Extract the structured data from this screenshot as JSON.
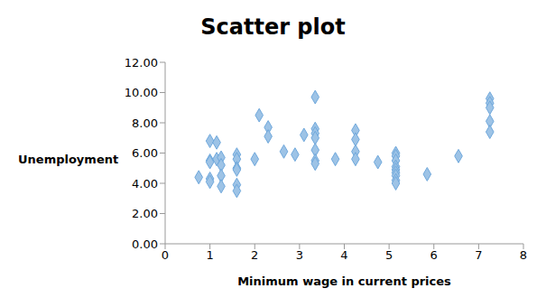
{
  "chart_data": {
    "type": "scatter",
    "title": "Scatter plot",
    "x_label": "Minimum wage in current prices",
    "y_label": "Unemployment",
    "x": [
      0.75,
      1,
      1,
      1,
      1,
      1,
      1.15,
      1.15,
      1.25,
      1.25,
      1.25,
      1.25,
      1.6,
      1.6,
      1.6,
      1.6,
      1.6,
      1.6,
      2.0,
      2.1,
      2.3,
      2.3,
      2.65,
      2.9,
      3.1,
      3.35,
      3.35,
      3.35,
      3.35,
      3.35,
      3.35,
      3.35,
      3.8,
      4.25,
      4.25,
      4.25,
      4.25,
      4.75,
      5.15,
      5.15,
      5.15,
      5.15,
      5.15,
      5.15,
      5.15,
      5.15,
      5.15,
      5.85,
      6.55,
      7.25,
      7.25,
      7.25,
      7.25,
      7.25
    ],
    "values": [
      4.4,
      6.8,
      5.5,
      5.4,
      4.3,
      4.1,
      6.7,
      5.6,
      5.7,
      5.2,
      4.5,
      3.8,
      5.9,
      5.6,
      5.0,
      4.9,
      3.9,
      3.5,
      5.6,
      8.5,
      7.7,
      7.1,
      6.1,
      5.9,
      7.2,
      9.7,
      7.6,
      7.3,
      7.0,
      6.2,
      5.5,
      5.3,
      5.6,
      7.5,
      6.9,
      6.1,
      5.6,
      5.4,
      6.0,
      5.8,
      5.5,
      5.1,
      4.9,
      4.7,
      4.5,
      4.2,
      4.0,
      4.6,
      5.8,
      9.6,
      9.3,
      9.0,
      8.1,
      7.4
    ],
    "color": "#9dc3e6",
    "marker": "diamond",
    "xlim": [
      0,
      8
    ],
    "xticks": [
      0,
      1,
      2,
      3,
      4,
      5,
      6,
      7,
      8
    ],
    "ylim": [
      0,
      12
    ],
    "yticks": [
      {
        "value": 0,
        "label": "0.00"
      },
      {
        "value": 2,
        "label": "2.00"
      },
      {
        "value": 4,
        "label": "4.00"
      },
      {
        "value": 6,
        "label": "6.00"
      },
      {
        "value": 8,
        "label": "8.00"
      },
      {
        "value": 10,
        "label": "10.00"
      },
      {
        "value": 12,
        "label": "12.00"
      }
    ],
    "grid": false
  }
}
